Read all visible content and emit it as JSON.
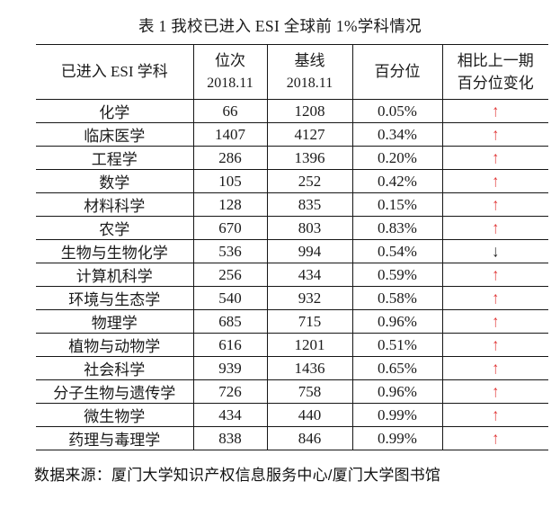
{
  "title": "表 1 我校已进入 ESI 全球前 1%学科情况",
  "table": {
    "headers": {
      "subject": "已进入 ESI 学科",
      "rank": [
        "位次",
        "2018.11"
      ],
      "baseline": [
        "基线",
        "2018.11"
      ],
      "percentile": "百分位",
      "change": [
        "相比上一期",
        "百分位变化"
      ]
    },
    "rows": [
      {
        "subject": "化学",
        "rank": "66",
        "baseline": "1208",
        "percentile": "0.05%",
        "change": "↑",
        "direction": "up"
      },
      {
        "subject": "临床医学",
        "rank": "1407",
        "baseline": "4127",
        "percentile": "0.34%",
        "change": "↑",
        "direction": "up"
      },
      {
        "subject": "工程学",
        "rank": "286",
        "baseline": "1396",
        "percentile": "0.20%",
        "change": "↑",
        "direction": "up"
      },
      {
        "subject": "数学",
        "rank": "105",
        "baseline": "252",
        "percentile": "0.42%",
        "change": "↑",
        "direction": "up"
      },
      {
        "subject": "材料科学",
        "rank": "128",
        "baseline": "835",
        "percentile": "0.15%",
        "change": "↑",
        "direction": "up"
      },
      {
        "subject": "农学",
        "rank": "670",
        "baseline": "803",
        "percentile": "0.83%",
        "change": "↑",
        "direction": "up"
      },
      {
        "subject": "生物与生物化学",
        "rank": "536",
        "baseline": "994",
        "percentile": "0.54%",
        "change": "↓",
        "direction": "down"
      },
      {
        "subject": "计算机科学",
        "rank": "256",
        "baseline": "434",
        "percentile": "0.59%",
        "change": "↑",
        "direction": "up"
      },
      {
        "subject": "环境与生态学",
        "rank": "540",
        "baseline": "932",
        "percentile": "0.58%",
        "change": "↑",
        "direction": "up"
      },
      {
        "subject": "物理学",
        "rank": "685",
        "baseline": "715",
        "percentile": "0.96%",
        "change": "↑",
        "direction": "up"
      },
      {
        "subject": "植物与动物学",
        "rank": "616",
        "baseline": "1201",
        "percentile": "0.51%",
        "change": "↑",
        "direction": "up"
      },
      {
        "subject": "社会科学",
        "rank": "939",
        "baseline": "1436",
        "percentile": "0.65%",
        "change": "↑",
        "direction": "up"
      },
      {
        "subject": "分子生物与遗传学",
        "rank": "726",
        "baseline": "758",
        "percentile": "0.96%",
        "change": "↑",
        "direction": "up"
      },
      {
        "subject": "微生物学",
        "rank": "434",
        "baseline": "440",
        "percentile": "0.99%",
        "change": "↑",
        "direction": "up"
      },
      {
        "subject": "药理与毒理学",
        "rank": "838",
        "baseline": "846",
        "percentile": "0.99%",
        "change": "↑",
        "direction": "up"
      }
    ]
  },
  "footer": "数据来源：厦门大学知识产权信息服务中心/厦门大学图书馆",
  "colors": {
    "up_arrow": "#e03434",
    "down_arrow": "#1a1a1a",
    "text": "#1a1a1a",
    "border": "#161616",
    "background": "#ffffff"
  }
}
